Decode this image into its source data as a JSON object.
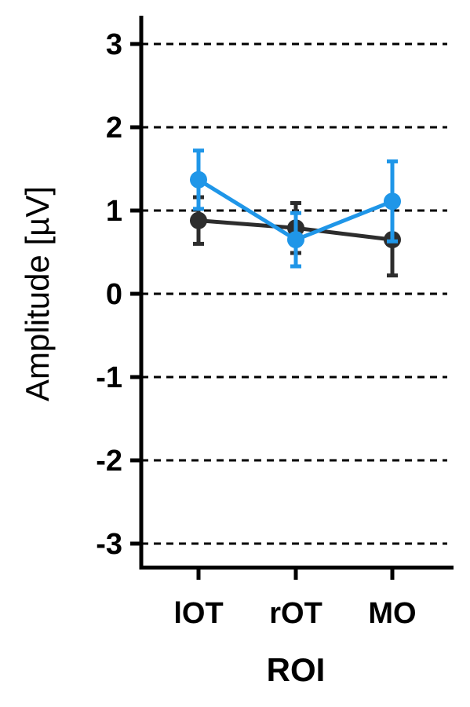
{
  "chart_data": {
    "type": "line",
    "title": "",
    "xlabel": "ROI",
    "ylabel": "Amplitude [µV]",
    "categories": [
      "lOT",
      "rOT",
      "MO"
    ],
    "ylim": [
      -3.3,
      3.3
    ],
    "yticks": [
      "3",
      "2",
      "1",
      "0",
      "-1",
      "-2",
      "-3"
    ],
    "ytick_values": [
      3,
      2,
      1,
      0,
      -1,
      -2,
      -3
    ],
    "grid": "dashed horizontal at major ticks",
    "legend": "none",
    "series": [
      {
        "color": "#2d2d2d",
        "values": [
          0.88,
          0.79,
          0.65
        ],
        "error": [
          0.28,
          0.3,
          0.43
        ]
      },
      {
        "color": "#1f96e8",
        "values": [
          1.37,
          0.65,
          1.11
        ],
        "error": [
          0.35,
          0.32,
          0.48
        ]
      }
    ]
  }
}
